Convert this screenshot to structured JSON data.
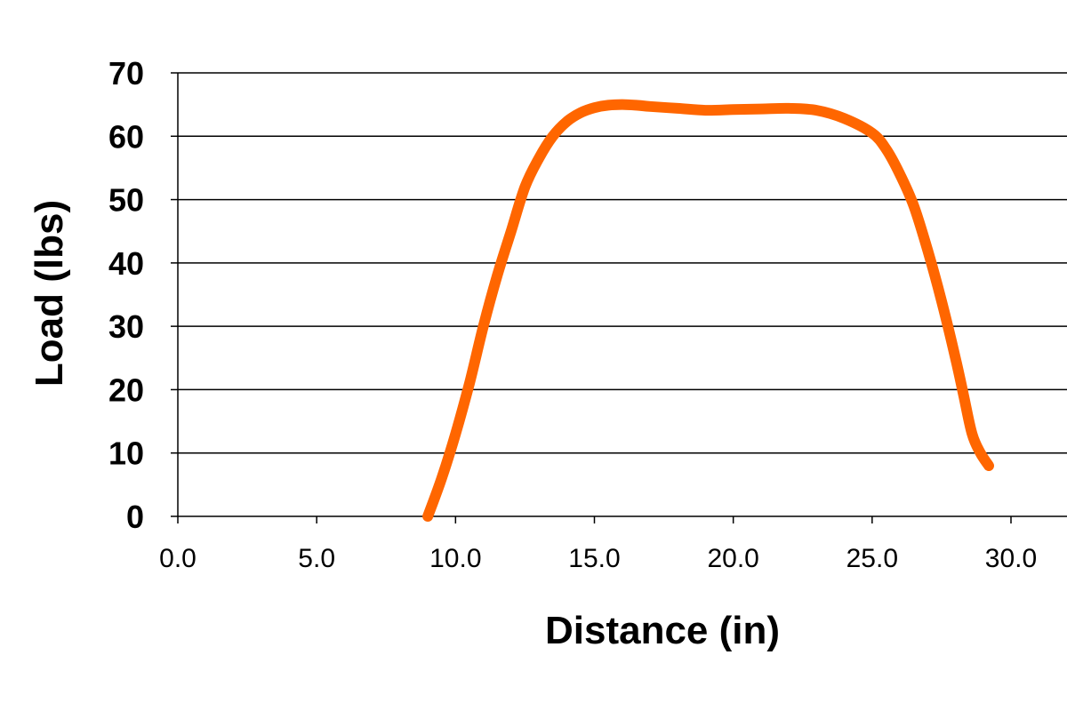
{
  "chart_data": {
    "type": "line",
    "title": "",
    "xlabel": "Distance (in)",
    "ylabel": "Load (lbs)",
    "xlim": [
      0,
      30
    ],
    "ylim": [
      0,
      70
    ],
    "x_ticks": [
      "0.0",
      "5.0",
      "10.0",
      "15.0",
      "20.0",
      "25.0",
      "30.0"
    ],
    "y_ticks": [
      "0",
      "10",
      "20",
      "30",
      "40",
      "50",
      "60",
      "70"
    ],
    "grid": "horizontal",
    "legend": "none",
    "series": [
      {
        "color": "#ff6600",
        "x": [
          9.0,
          9.5,
          10.0,
          10.5,
          11.0,
          11.5,
          12.0,
          12.5,
          13.0,
          13.5,
          14.0,
          14.5,
          15.0,
          15.5,
          16.0,
          16.5,
          17.0,
          18.0,
          19.0,
          20.0,
          21.0,
          22.0,
          23.0,
          24.0,
          25.0,
          25.5,
          26.0,
          26.5,
          27.0,
          27.5,
          28.0,
          28.3,
          28.6,
          28.9,
          29.2
        ],
        "y": [
          0,
          6,
          13,
          21,
          30,
          38,
          45,
          52,
          56.5,
          60,
          62.3,
          63.7,
          64.5,
          64.9,
          65.0,
          64.9,
          64.7,
          64.4,
          64.1,
          64.2,
          64.3,
          64.4,
          64.1,
          62.8,
          60.5,
          58,
          54,
          49,
          42,
          34,
          25,
          19,
          13,
          10,
          8
        ]
      }
    ]
  }
}
